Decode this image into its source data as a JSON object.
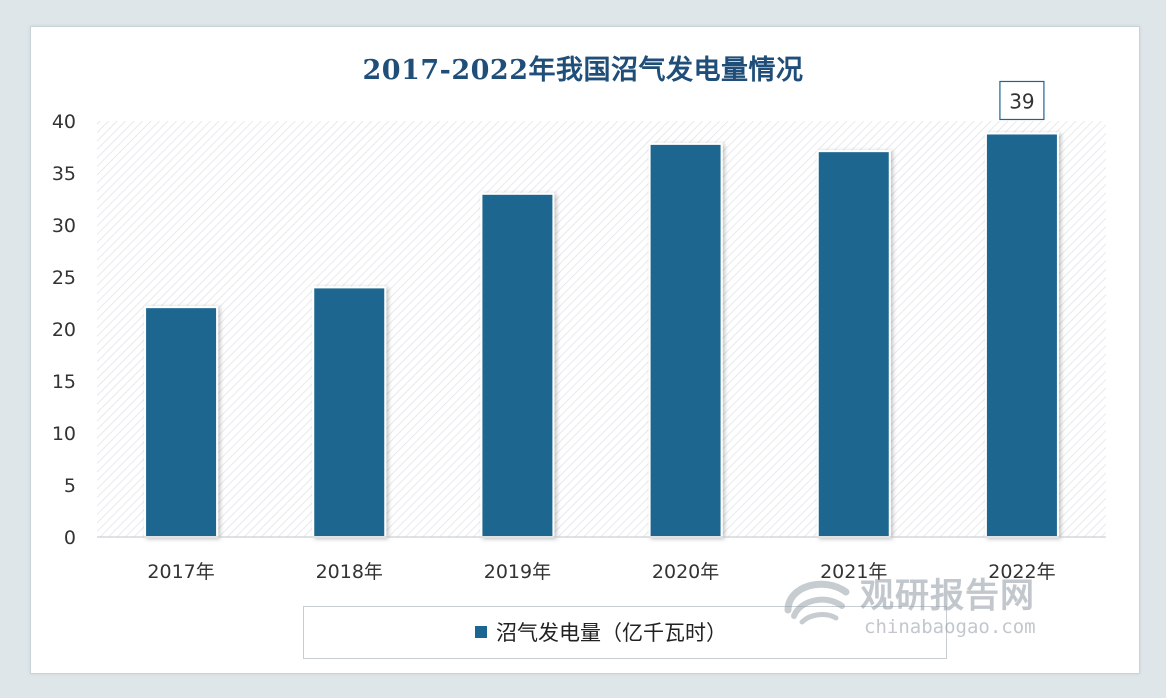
{
  "chart_data": {
    "type": "bar",
    "title": "2017-2022年我国沼气发电量情况",
    "categories": [
      "2017年",
      "2018年",
      "2019年",
      "2020年",
      "2021年",
      "2022年"
    ],
    "series": [
      {
        "name": "沼气发电量（亿千瓦时）",
        "values": [
          22.1,
          24.0,
          33.0,
          37.8,
          37.1,
          38.8
        ]
      }
    ],
    "data_labels": [
      {
        "category": "2022年",
        "text": "39"
      }
    ],
    "yticks": [
      0,
      5,
      10,
      15,
      20,
      25,
      30,
      35,
      40
    ],
    "ylim": [
      0,
      40
    ],
    "xlabel": "",
    "ylabel": "",
    "grid": false,
    "legend_position": "bottom",
    "colors": {
      "bar": "#1b6690",
      "plot_hatch": "#d5dadf",
      "title": "#1f4e79"
    }
  },
  "watermark": {
    "brand": "观研报告网",
    "url": "chinabaogao.com"
  }
}
